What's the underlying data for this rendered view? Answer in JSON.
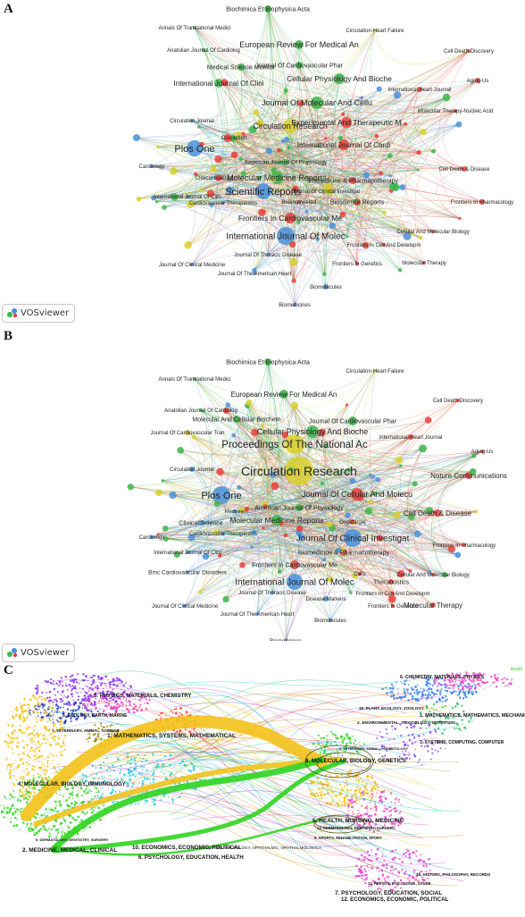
{
  "panels": {
    "a": {
      "letter": "A",
      "labels": [
        "Biochimica Et Biophysica Acta",
        "Circulation-Heart Failure",
        "Annals Of Translational Medici",
        "Cell Death Discovery",
        "European Review For Medical An",
        "Anatolian Journal Of Cardiolog",
        "Journal Of Cardiovascular Phar",
        "Medical Science Monitor",
        "Cellular Physiology And Bioche",
        "Aging-Us",
        "International Journal Of Clini",
        "International Heart Journal",
        "Journal Of Molecular And Cellu",
        "Experimental And Therapeutic M",
        "Molecular Therapy-Nucleic Acid",
        "Circulation Journal",
        "Circulation Research",
        "International Journal Of Cardi",
        "Plos One",
        "Circulation",
        "American Journal Of Physiology",
        "Cell Death & Disease",
        "Molecular Medicine Reports",
        "Cardiology",
        "Biomedicine & Pharmacotherapy",
        "Clinical Science",
        "Journal Of Clinical Investigat",
        "Scientific Reports",
        "International Journal Of Clini",
        "Bioengineered",
        "Bioscience Reports",
        "Frontiers In Pharmacology",
        "Cardiovascular Therapeutics",
        "Frontiers In Cardiovascular Me",
        "International Journal Of Molec",
        "Cellular And Molecular Biology",
        "Journal Of Thoracic Disease",
        "Frontiers In Cell And Developm",
        "Journal Of Clinical Medicine",
        "Frontiers In Genetics",
        "Molecular Therapy",
        "Journal Of The American Heart",
        "Biomolecules",
        "Biomedicines"
      ]
    },
    "b": {
      "letter": "B",
      "labels": [
        "Biochimica Et Biophysica Acta",
        "Circulation-Heart Failure",
        "Annals Of Translational Medici",
        "European Review For Medical An",
        "Cell Death Discovery",
        "Anatolian Journal Of Cardiolog",
        "Molecular And Cellular Biochem",
        "Journal Of Cardiovascular Phar",
        "Cellular Physiology And Bioche",
        "Journal Of Cardiovascular Tran",
        "International Heart Journal",
        "Proceedings Of The National Ac",
        "Aging-Us",
        "Circulation Journal",
        "Circulation Research",
        "Nature Communications",
        "Plos One",
        "Journal Of Cellular And Molecu",
        "Medicine",
        "American Journal Of Physiology",
        "Cardiology",
        "Molecular Medicine Reports",
        "Cell Death & Disease",
        "Clinical Science",
        "Oncotarget",
        "Cardiovascular Therapeutics",
        "Journal Of Clinical Investigat",
        "International Journal Of Clini",
        "Frontiers In Pharmacology",
        "Biomedicine & Pharmacotherapy",
        "Frontiers In Cardiovascular Me",
        "Theranostics",
        "Bmc Cardiovascular Disorders",
        "Cells",
        "Cellular And Molecular Biology",
        "International Journal Of Molec",
        "Journal Of Thoracic Disease",
        "Disease Markers",
        "Frontiers In Cell And Developm",
        "Journal Of Clinical Medicine",
        "Frontiers In Genetics",
        "Molecular Therapy",
        "Journal Of The American Heart",
        "Biomolecules",
        "Biomedicines"
      ]
    },
    "c": {
      "letter": "C",
      "left_labels": [
        "5. PHYSICS, MATERIALS, CHEMISTRY",
        "3. ECOLOGY, EARTH, MARINE",
        "7. VETERINARY, ANIMAL, SCIENCE",
        "1. MATHEMATICS, SYSTEMS, MATHEMATICAL",
        "4. MOLECULAR, BIOLOGY, IMMUNOLOGY",
        "9. DERMATOLOGY, DENTISTRY, SURGERY",
        "2. MEDICINE, MEDICAL, CLINICAL",
        "10. ECONOMICS, ECONOMIC, POLITICAL",
        "6. PSYCHOLOGY, EDUCATION, HEALTH"
      ],
      "right_labels": [
        "6. CHEMISTRY, MATERIALS, PHYSICS",
        "10. PLANT, ECOLOGY, ZOOLOGY",
        "1. MATHEMATICS, MATHEMATICS, MECHANICS",
        "2. ENVIRONMENTAL, TOXICOLOGY, NUTRITION",
        "3. SYSTEMS, COMPUTING, COMPUTER",
        "4. VETERINARY, ANIMAL, PARASITOLOGY",
        "8. MOLECULAR, BIOLOGY, GENETICS",
        "5. HEALTH, NURSING, MEDICINE",
        "14. DERMATOLOGY, DENTISTRY, SURGERY",
        "9. SPORTS, REHABILITATION, SPORT",
        "18. HISTORY, PHILOSOPHY, RECORDS",
        "13. REVISTA, PSICOLOGIA, SAUDE",
        "7. PSYCHOLOGY, EDUCATION, SOCIAL",
        "12. ECONOMICS, ECONOMIC, POLITICAL"
      ],
      "flow_label": "16. OPHTHALMOLOGY, OPHTHALMIC, OPHTHALMOLOGICA",
      "corner_label": "tkoxid"
    }
  },
  "badge": {
    "label": "VOSviewer"
  },
  "colors": {
    "red": "#e8403a",
    "green": "#3cb54a",
    "blue": "#4a90d9",
    "yellow": "#d8cf2a",
    "orange_flow": "#f4c21b",
    "green_flow": "#2fd41f"
  }
}
